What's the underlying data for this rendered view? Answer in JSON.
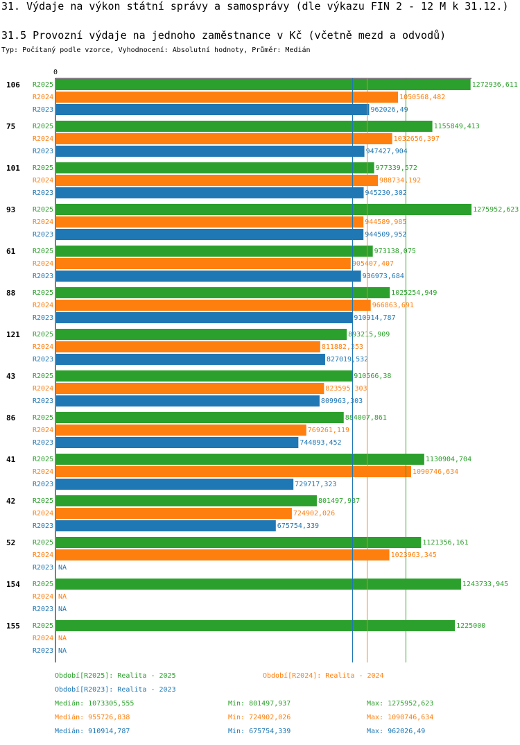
{
  "header": {
    "title": "31. Výdaje na výkon státní správy a samosprávy (dle výkazu FIN 2 - 12 M k 31.12.)",
    "subtitle": "31.5 Provozní výdaje na jednoho zaměstnance v Kč (včetně mezd a odvodů)",
    "meta": "Typ: Počítaný podle vzorce, Vyhodnocení: Absolutní hodnoty, Průměr: Medián"
  },
  "colors": {
    "R2025": "#2ca02c",
    "R2024": "#ff7f0e",
    "R2023": "#1f77b4"
  },
  "chart_data": {
    "type": "bar",
    "orientation": "horizontal",
    "axis_zero_label": "0",
    "missing_label": "NA",
    "series_names": [
      "R2025",
      "R2024",
      "R2023"
    ],
    "xlim": [
      0,
      1280000
    ],
    "groups": [
      {
        "label": "106",
        "values": [
          1272936.611,
          1050568.482,
          962026.49
        ],
        "texts": [
          "1272936,611",
          "1050568,482",
          "962026,49"
        ]
      },
      {
        "label": "75",
        "values": [
          1155849.413,
          1032656.397,
          947427.904
        ],
        "texts": [
          "1155849,413",
          "1032656,397",
          "947427,904"
        ]
      },
      {
        "label": "101",
        "values": [
          977339.572,
          988734.192,
          945230.302
        ],
        "texts": [
          "977339,572",
          "988734,192",
          "945230,302"
        ]
      },
      {
        "label": "93",
        "values": [
          1275952.623,
          944589.985,
          944509.952
        ],
        "texts": [
          "1275952,623",
          "944589,985",
          "944509,952"
        ]
      },
      {
        "label": "61",
        "values": [
          973138.075,
          905407.407,
          936973.684
        ],
        "texts": [
          "973138,075",
          "905407,407",
          "936973,684"
        ]
      },
      {
        "label": "88",
        "values": [
          1025254.949,
          966863.691,
          910914.787
        ],
        "texts": [
          "1025254,949",
          "966863,691",
          "910914,787"
        ]
      },
      {
        "label": "121",
        "values": [
          893215.909,
          811882.353,
          827019.532
        ],
        "texts": [
          "893215,909",
          "811882,353",
          "827019,532"
        ]
      },
      {
        "label": "43",
        "values": [
          910566.38,
          823595.303,
          809963.303
        ],
        "texts": [
          "910566,38",
          "823595,303",
          "809963,303"
        ]
      },
      {
        "label": "86",
        "values": [
          884007.861,
          769261.119,
          744893.452
        ],
        "texts": [
          "884007,861",
          "769261,119",
          "744893,452"
        ]
      },
      {
        "label": "41",
        "values": [
          1130904.704,
          1090746.634,
          729717.323
        ],
        "texts": [
          "1130904,704",
          "1090746,634",
          "729717,323"
        ]
      },
      {
        "label": "42",
        "values": [
          801497.937,
          724902.026,
          675754.339
        ],
        "texts": [
          "801497,937",
          "724902,026",
          "675754,339"
        ]
      },
      {
        "label": "52",
        "values": [
          1121356.161,
          1023963.345,
          null
        ],
        "texts": [
          "1121356,161",
          "1023963,345",
          null
        ]
      },
      {
        "label": "154",
        "values": [
          1243733.945,
          null,
          null
        ],
        "texts": [
          "1243733,945",
          null,
          null
        ]
      },
      {
        "label": "155",
        "values": [
          1225000,
          null,
          null
        ],
        "texts": [
          "1225000",
          null,
          null
        ]
      }
    ],
    "median_lines": [
      {
        "series": "R2025",
        "value": 1073305.555
      },
      {
        "series": "R2024",
        "value": 955726.838
      },
      {
        "series": "R2023",
        "value": 910914.787
      }
    ]
  },
  "footer": {
    "legend_2025": "Období[R2025]: Realita - 2025",
    "legend_2024": "Období[R2024]: Realita - 2024",
    "legend_2023": "Období[R2023]: Realita - 2023",
    "stats_2025": {
      "median": "Medián: 1073305,555",
      "min": "Min: 801497,937",
      "max": "Max: 1275952,623"
    },
    "stats_2024": {
      "median": "Medián: 955726,838",
      "min": "Min: 724902,026",
      "max": "Max: 1090746,634"
    },
    "stats_2023": {
      "median": "Medián: 910914,787",
      "min": "Min: 675754,339",
      "max": "Max: 962026,49"
    }
  }
}
